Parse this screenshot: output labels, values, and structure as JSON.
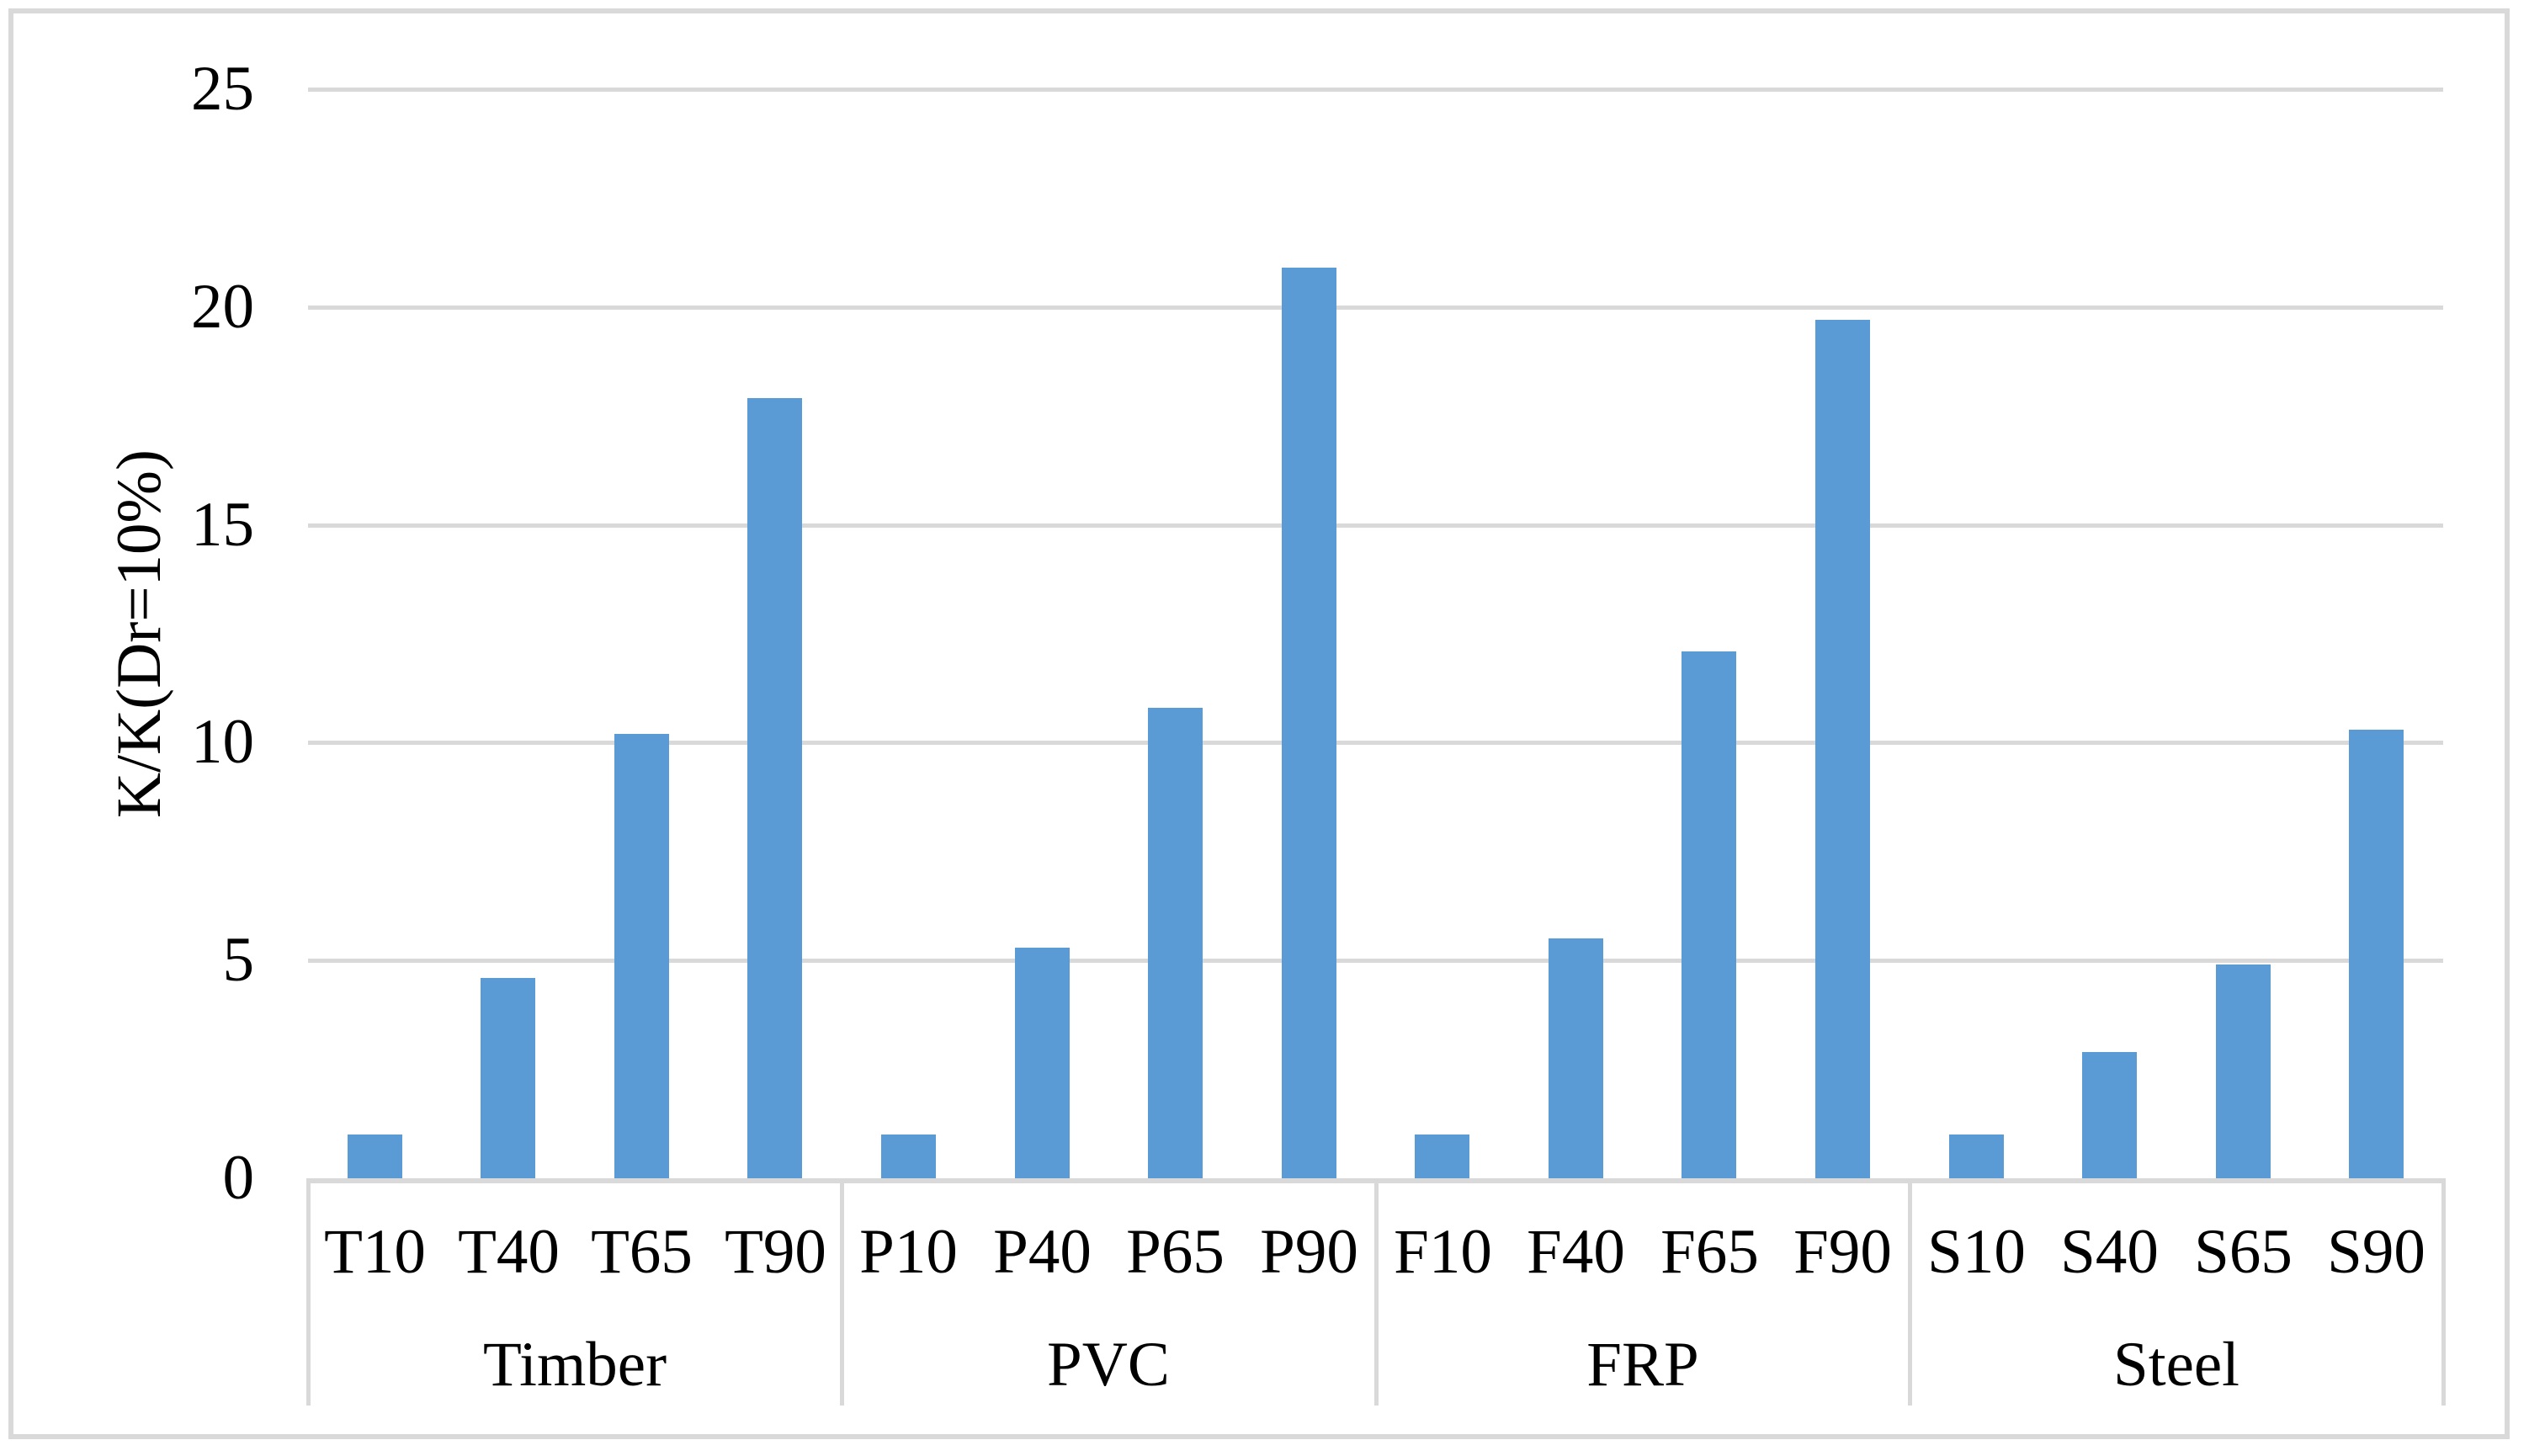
{
  "chart_data": {
    "type": "bar",
    "title": "",
    "xlabel": "",
    "ylabel": "K/K(Dr=10%)",
    "ylim": [
      0,
      25
    ],
    "yticks": [
      0,
      5,
      10,
      15,
      20,
      25
    ],
    "grid": "horizontal",
    "legend": "none",
    "bar_color": "#5B9BD5",
    "gridline_color": "#D9D9D9",
    "axis_color": "#D9D9D9",
    "figure_border_color": "#D9D9D9",
    "categories": [
      "T10",
      "T40",
      "T65",
      "T90",
      "P10",
      "P40",
      "P65",
      "P90",
      "F10",
      "F40",
      "F65",
      "F90",
      "S10",
      "S40",
      "S65",
      "S90"
    ],
    "values": [
      1.0,
      4.6,
      10.2,
      17.9,
      1.0,
      5.3,
      10.8,
      20.9,
      1.0,
      5.5,
      12.1,
      19.7,
      1.0,
      2.9,
      4.9,
      10.3
    ],
    "groups": [
      {
        "label": "Timber",
        "categories": [
          "T10",
          "T40",
          "T65",
          "T90"
        ],
        "values": [
          1.0,
          4.6,
          10.2,
          17.9
        ]
      },
      {
        "label": "PVC",
        "categories": [
          "P10",
          "P40",
          "P65",
          "P90"
        ],
        "values": [
          1.0,
          5.3,
          10.8,
          20.9
        ]
      },
      {
        "label": "FRP",
        "categories": [
          "F10",
          "F40",
          "F65",
          "F90"
        ],
        "values": [
          1.0,
          5.5,
          12.1,
          19.7
        ]
      },
      {
        "label": "Steel",
        "categories": [
          "S10",
          "S40",
          "S65",
          "S90"
        ],
        "values": [
          1.0,
          2.9,
          4.9,
          10.3
        ]
      }
    ]
  }
}
